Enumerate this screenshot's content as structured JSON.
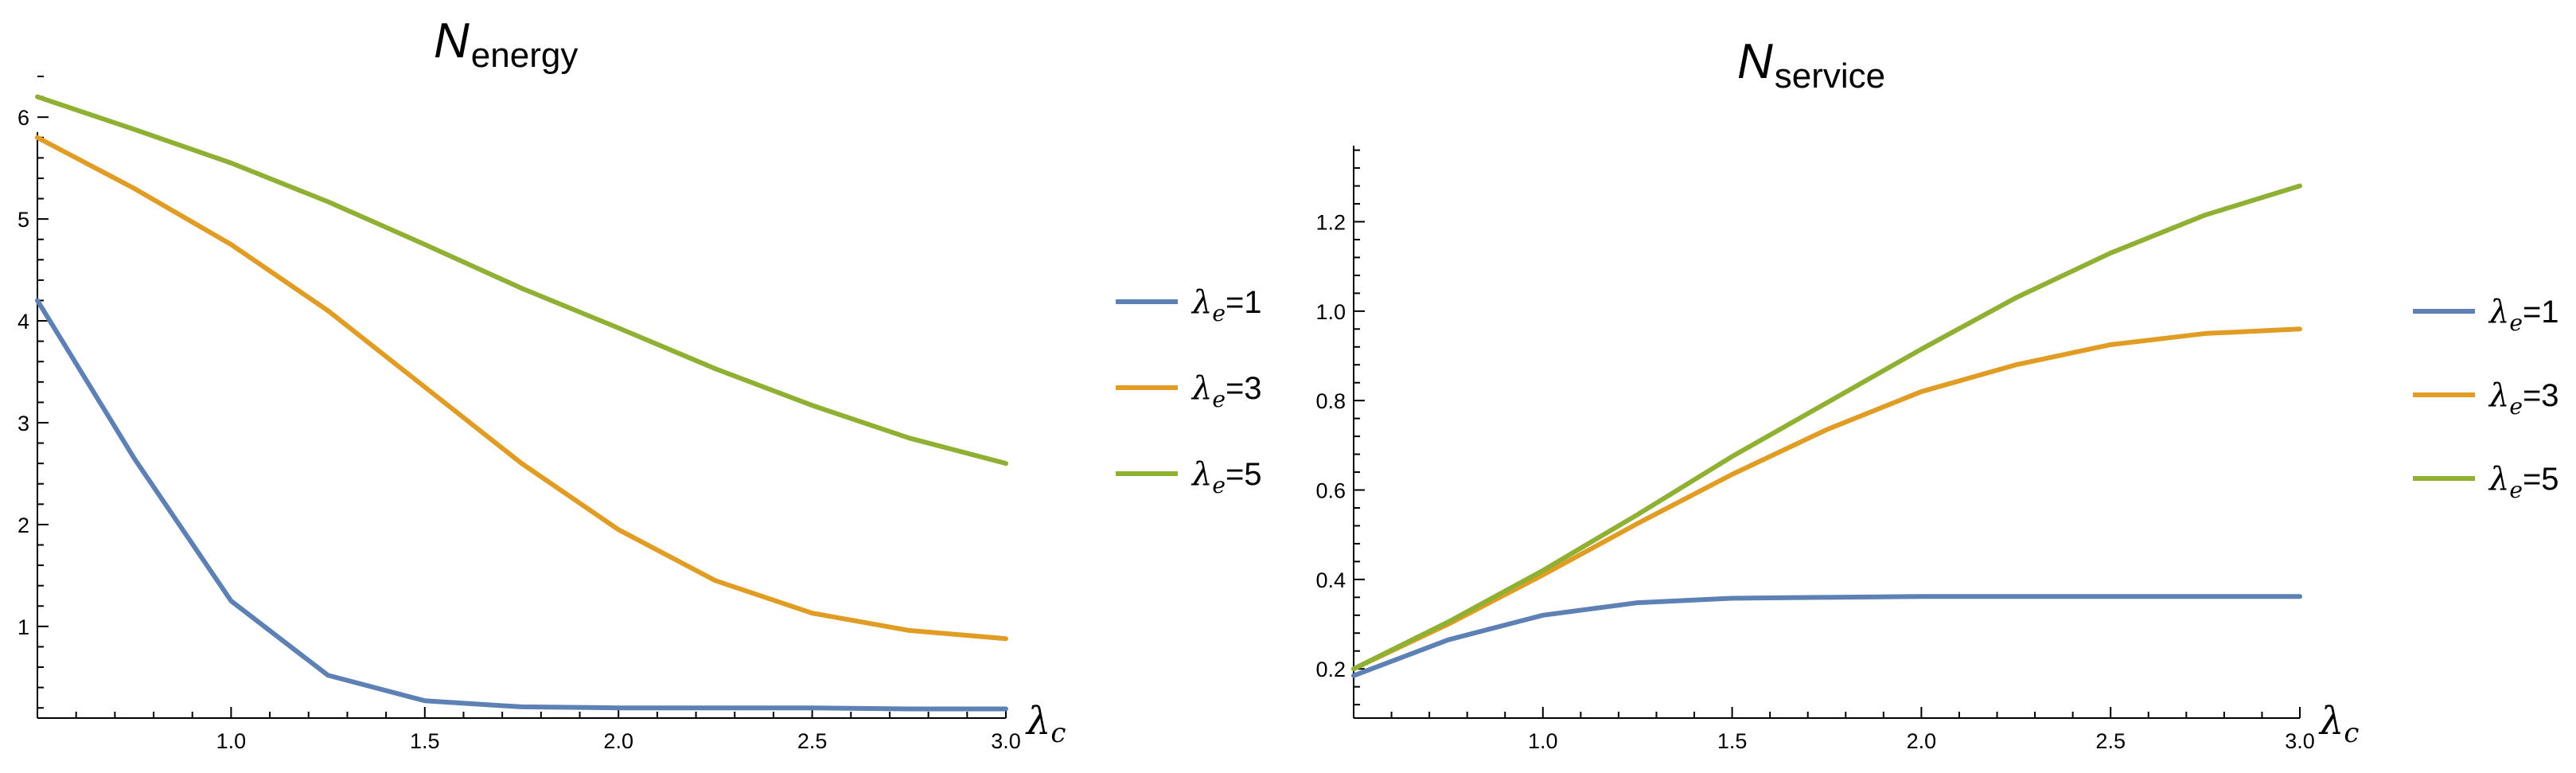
{
  "colors": {
    "blue": "#5e81b5",
    "orange": "#e19c24",
    "green": "#8fb032"
  },
  "chart_data": [
    {
      "type": "line",
      "title": {
        "main": "N",
        "sub": "energy"
      },
      "xlabel": {
        "symbol": "λ",
        "sub": "c"
      },
      "ylabel": "",
      "xlim": [
        0.5,
        3.0
      ],
      "ylim": [
        0.1,
        6.4
      ],
      "x_ticks_major": [
        1.0,
        1.5,
        2.0,
        2.5,
        3.0
      ],
      "x_tick_labels": [
        "1.0",
        "1.5",
        "2.0",
        "2.5",
        "3.0"
      ],
      "y_ticks_major": [
        1,
        2,
        3,
        4,
        5,
        6
      ],
      "y_tick_labels": [
        "1",
        "2",
        "3",
        "4",
        "5",
        "6"
      ],
      "legend_position": "right",
      "x": [
        0.5,
        0.75,
        1.0,
        1.25,
        1.5,
        1.75,
        2.0,
        2.25,
        2.5,
        2.75,
        3.0
      ],
      "series": [
        {
          "name": "λe=1",
          "legend": {
            "symbol": "λ",
            "sub": "e",
            "value": "=1"
          },
          "color": "#5e81b5",
          "values": [
            4.2,
            2.65,
            1.25,
            0.52,
            0.27,
            0.21,
            0.2,
            0.2,
            0.2,
            0.19,
            0.19
          ]
        },
        {
          "name": "λe=3",
          "legend": {
            "symbol": "λ",
            "sub": "e",
            "value": "=3"
          },
          "color": "#e19c24",
          "values": [
            5.8,
            5.3,
            4.75,
            4.1,
            3.35,
            2.6,
            1.95,
            1.45,
            1.13,
            0.96,
            0.88
          ]
        },
        {
          "name": "λe=5",
          "legend": {
            "symbol": "λ",
            "sub": "e",
            "value": "=5"
          },
          "color": "#8fb032",
          "values": [
            6.2,
            5.88,
            5.55,
            5.17,
            4.75,
            4.32,
            3.93,
            3.53,
            3.17,
            2.85,
            2.6
          ]
        }
      ]
    },
    {
      "type": "line",
      "title": {
        "main": "N",
        "sub": "service"
      },
      "xlabel": {
        "symbol": "λ",
        "sub": "c"
      },
      "ylabel": "",
      "xlim": [
        0.5,
        3.0
      ],
      "ylim": [
        0.09,
        1.37
      ],
      "x_ticks_major": [
        1.0,
        1.5,
        2.0,
        2.5,
        3.0
      ],
      "x_tick_labels": [
        "1.0",
        "1.5",
        "2.0",
        "2.5",
        "3.0"
      ],
      "y_ticks_major": [
        0.2,
        0.4,
        0.6,
        0.8,
        1.0,
        1.2
      ],
      "y_tick_labels": [
        "0.2",
        "0.4",
        "0.6",
        "0.8",
        "1.0",
        "1.2"
      ],
      "legend_position": "right",
      "x": [
        0.5,
        0.75,
        1.0,
        1.25,
        1.5,
        1.75,
        2.0,
        2.25,
        2.5,
        2.75,
        3.0
      ],
      "series": [
        {
          "name": "λe=1",
          "legend": {
            "symbol": "λ",
            "sub": "e",
            "value": "=1"
          },
          "color": "#5e81b5",
          "values": [
            0.185,
            0.265,
            0.32,
            0.348,
            0.358,
            0.36,
            0.362,
            0.362,
            0.362,
            0.362,
            0.362
          ]
        },
        {
          "name": "λe=3",
          "legend": {
            "symbol": "λ",
            "sub": "e",
            "value": "=3"
          },
          "color": "#e19c24",
          "values": [
            0.2,
            0.3,
            0.41,
            0.525,
            0.635,
            0.735,
            0.82,
            0.88,
            0.925,
            0.95,
            0.96
          ]
        },
        {
          "name": "λe=5",
          "legend": {
            "symbol": "λ",
            "sub": "e",
            "value": "=5"
          },
          "color": "#8fb032",
          "values": [
            0.2,
            0.305,
            0.42,
            0.545,
            0.675,
            0.795,
            0.915,
            1.03,
            1.13,
            1.215,
            1.28
          ]
        }
      ]
    }
  ]
}
